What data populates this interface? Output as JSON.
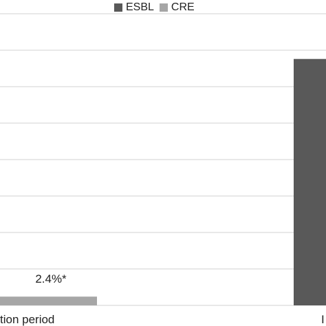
{
  "chart_data": {
    "type": "bar",
    "categories": [
      "...ction period",
      "I..."
    ],
    "series": [
      {
        "name": "ESBL",
        "color": "#595959",
        "values": [
          null,
          67.6
        ]
      },
      {
        "name": "CRE",
        "color": "#a6a6a6",
        "values": [
          2.4,
          null
        ]
      }
    ],
    "data_labels": [
      "2.4%*"
    ],
    "ylim": [
      0,
      80
    ],
    "grid": true,
    "legend": "top-center"
  },
  "legend": {
    "items": [
      {
        "label": "ESBL",
        "color": "#595959"
      },
      {
        "label": "CRE",
        "color": "#a6a6a6"
      }
    ]
  },
  "labels": {
    "category_left": "tion period",
    "category_right": "I",
    "cre_value_label": "2.4%*"
  }
}
